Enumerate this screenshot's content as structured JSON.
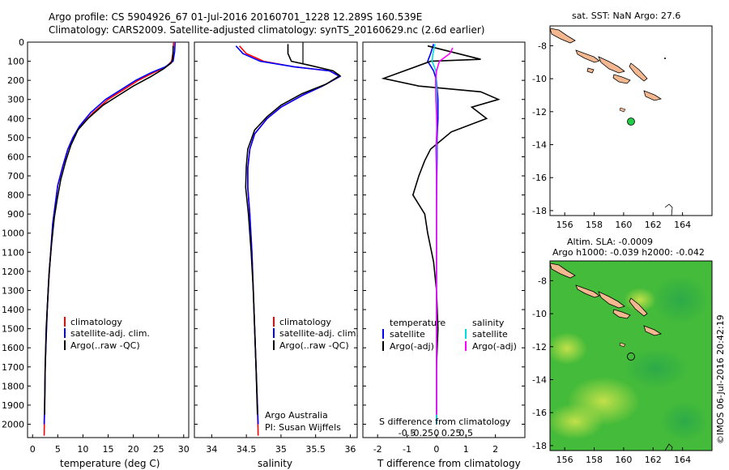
{
  "header": {
    "line1": "Argo profile: CS 5904926_67 01-Jul-2016 20160701_1228 12.289S 160.539E",
    "line2": "Climatology: CARS2009. Satellite-adjusted climatology: synTS_20160629.nc (2.6d earlier)"
  },
  "credits": {
    "vertical": "©IMOS 06-Jul-2016 20:42:19",
    "argo_org": "Argo Australia",
    "pi": "PI: Susan Wijffels"
  },
  "colors": {
    "climatology": "#ff0000",
    "satellite": "#0000ff",
    "argo": "#000000",
    "sal_satellite": "#00dddd",
    "sal_argo": "#ff00ff",
    "land": "#f4b891",
    "ocean_anomaly": "#33cc33",
    "float_marker": "#22cc44"
  },
  "chart_data": [
    {
      "type": "line",
      "id": "temperature",
      "xlabel": "temperature (deg C)",
      "ylabel": "",
      "xlim": [
        -1,
        31
      ],
      "ylim": [
        2070,
        0
      ],
      "xticks": [
        0,
        5,
        10,
        15,
        20,
        25,
        30
      ],
      "yticks": [
        0,
        100,
        200,
        300,
        400,
        500,
        600,
        700,
        800,
        900,
        1000,
        1100,
        1200,
        1300,
        1400,
        1500,
        1600,
        1700,
        1800,
        1900,
        2000
      ],
      "legend": [
        "climatology",
        "satellite-adj. clim.",
        "Argo(..raw -QC)"
      ],
      "series": [
        {
          "name": "climatology",
          "color": "#ff0000",
          "x": [
            28.0,
            27.9,
            27.6,
            26.5,
            24.0,
            21.0,
            18.0,
            15.0,
            12.0,
            9.5,
            8.0,
            7.0,
            6.0,
            5.0,
            4.5,
            4.0,
            3.6,
            3.2,
            2.9,
            2.7,
            2.5,
            2.4,
            2.3
          ],
          "y": [
            0,
            50,
            100,
            130,
            160,
            200,
            250,
            300,
            370,
            440,
            500,
            560,
            650,
            750,
            850,
            950,
            1100,
            1250,
            1400,
            1550,
            1700,
            1900,
            2060
          ]
        },
        {
          "name": "satellite-adj. clim.",
          "color": "#0000ff",
          "x": [
            28.3,
            28.2,
            27.9,
            26.3,
            23.5,
            20.5,
            17.5,
            14.5,
            11.5,
            9.3,
            8.0,
            7.0,
            6.0,
            5.0,
            4.5,
            4.0,
            3.6,
            3.2,
            2.9,
            2.7,
            2.5,
            2.4,
            2.3
          ],
          "y": [
            0,
            50,
            100,
            130,
            160,
            200,
            250,
            300,
            370,
            440,
            500,
            560,
            650,
            750,
            850,
            950,
            1100,
            1250,
            1400,
            1550,
            1700,
            1900,
            2000
          ]
        },
        {
          "name": "Argo(..raw -QC)",
          "color": "#000000",
          "x": [
            27.9,
            27.9,
            27.8,
            27.5,
            26.0,
            23.5,
            20.0,
            17.0,
            14.0,
            11.0,
            9.0,
            7.6,
            6.6,
            5.6,
            4.9,
            4.3,
            3.8,
            3.3,
            3.0,
            2.7,
            2.5,
            2.4
          ],
          "y": [
            20,
            60,
            90,
            110,
            140,
            180,
            230,
            280,
            330,
            400,
            460,
            540,
            620,
            720,
            820,
            920,
            1050,
            1200,
            1350,
            1500,
            1700,
            1950
          ]
        }
      ]
    },
    {
      "type": "line",
      "id": "salinity",
      "xlabel": "salinity",
      "ylabel": "",
      "xlim": [
        33.75,
        36.1
      ],
      "ylim": [
        2070,
        0
      ],
      "xticks": [
        34,
        34.5,
        35,
        35.5,
        36
      ],
      "legend": [
        "climatology",
        "satellite-adj. clim.",
        "Argo(..raw -QC)"
      ],
      "series": [
        {
          "name": "climatology",
          "color": "#ff0000",
          "x": [
            34.4,
            34.5,
            34.75,
            35.2,
            35.7,
            35.85,
            35.6,
            35.3,
            35.0,
            34.8,
            34.62,
            34.55,
            34.52,
            34.52,
            34.55,
            34.58,
            34.6,
            34.62,
            34.64,
            34.66,
            34.67
          ],
          "y": [
            20,
            60,
            100,
            130,
            150,
            180,
            230,
            280,
            340,
            400,
            480,
            560,
            660,
            760,
            900,
            1100,
            1300,
            1500,
            1700,
            1900,
            2060
          ]
        },
        {
          "name": "satellite-adj. clim.",
          "color": "#0000ff",
          "x": [
            34.35,
            34.45,
            34.7,
            35.2,
            35.7,
            35.85,
            35.6,
            35.3,
            35.0,
            34.8,
            34.62,
            34.55,
            34.52,
            34.52,
            34.55,
            34.58,
            34.6,
            34.62,
            34.64,
            34.66,
            34.67
          ],
          "y": [
            20,
            60,
            100,
            130,
            150,
            180,
            230,
            280,
            340,
            400,
            480,
            560,
            660,
            760,
            900,
            1100,
            1300,
            1500,
            1700,
            1900,
            2000
          ]
        },
        {
          "name": "Argo(..raw -QC)",
          "color": "#000000",
          "x": [
            35.1,
            35.1,
            35.15,
            35.4,
            35.75,
            35.85,
            35.65,
            35.3,
            35.0,
            34.8,
            34.62,
            34.52,
            34.5,
            34.49,
            34.53,
            34.57,
            34.6,
            34.62,
            34.64,
            34.66
          ],
          "y": [
            10,
            60,
            100,
            120,
            150,
            175,
            220,
            270,
            330,
            390,
            460,
            560,
            650,
            760,
            900,
            1100,
            1300,
            1500,
            1700,
            1950
          ]
        }
      ]
    },
    {
      "type": "line",
      "id": "difference",
      "xlabel": "T difference from climatology",
      "xlabel_top": "S difference from climatology",
      "xlim": [
        -2.5,
        3.0
      ],
      "ylim": [
        2070,
        0
      ],
      "xticks": [
        -2,
        -1,
        0,
        1,
        2
      ],
      "xticks_top": [
        -0.5,
        -0.25,
        0,
        0.25,
        0.5
      ],
      "legend": {
        "temperature_header": "temperature",
        "salinity_header": "salinity",
        "items": [
          "satellite",
          "Argo(-adj)",
          "satellite",
          "Argo(-adj)"
        ]
      },
      "series": [
        {
          "name": "T satellite",
          "color": "#0000ff",
          "x": [
            -0.1,
            -0.2,
            -0.3,
            -0.1,
            0.0,
            0.05,
            0.05,
            0.02,
            0.02,
            0.01,
            0.0,
            0.0,
            0.0,
            0.0,
            0.0,
            0.0,
            0.0
          ],
          "y": [
            10,
            60,
            100,
            150,
            200,
            300,
            400,
            500,
            600,
            700,
            900,
            1100,
            1300,
            1500,
            1700,
            1900,
            2000
          ]
        },
        {
          "name": "T Argo(-adj)",
          "color": "#000000",
          "x": [
            -0.3,
            1.5,
            -0.2,
            -1.8,
            -0.6,
            1.5,
            2.1,
            1.2,
            1.7,
            0.5,
            -0.2,
            -0.4,
            -0.6,
            -0.8,
            -0.4,
            -0.3,
            -0.1,
            0.0,
            0.05,
            0.0,
            0.0
          ],
          "y": [
            20,
            90,
            100,
            190,
            230,
            260,
            300,
            340,
            400,
            470,
            560,
            620,
            700,
            800,
            900,
            1000,
            1150,
            1300,
            1500,
            1700,
            1950
          ]
        },
        {
          "name": "S satellite",
          "color": "#00dddd",
          "x": [
            -0.05,
            -0.12,
            -0.15,
            -0.02,
            0.0,
            0.01,
            0.0,
            0.0,
            0.0,
            0.0,
            0.0,
            0.0,
            0.0
          ],
          "y": [
            10,
            60,
            100,
            150,
            200,
            300,
            500,
            700,
            900,
            1200,
            1500,
            1800,
            2000
          ]
        },
        {
          "name": "S Argo(-adj)",
          "color": "#ff00ff",
          "x": [
            0.55,
            0.45,
            0.1,
            0.0,
            -0.03,
            -0.02,
            0.02,
            -0.02,
            0.0,
            0.0,
            0.0,
            0.0
          ],
          "y": [
            30,
            60,
            100,
            150,
            200,
            300,
            450,
            550,
            700,
            900,
            1200,
            1950
          ]
        }
      ]
    }
  ],
  "maps": {
    "sst": {
      "title": "sat. SST: NaN Argo: 27.6",
      "lon_ticks": [
        156,
        158,
        160,
        162,
        164
      ],
      "lat_ticks": [
        -8,
        -10,
        -12,
        -14,
        -16,
        -18
      ],
      "lon_range": [
        155,
        166
      ],
      "lat_range": [
        -18.3,
        -6.8
      ],
      "float_position": {
        "lon": 160.54,
        "lat": -12.29
      }
    },
    "sla": {
      "title1": "Altim. SLA: -0.0009",
      "title2": "Argo h1000: -0.039 h2000: -0.042",
      "lon_ticks": [
        156,
        158,
        160,
        162,
        164
      ],
      "lat_ticks": [
        -8,
        -10,
        -12,
        -14,
        -16,
        -18
      ],
      "lon_range": [
        155,
        166
      ],
      "lat_range": [
        -18.3,
        -6.8
      ],
      "float_position": {
        "lon": 160.54,
        "lat": -12.29
      }
    }
  }
}
